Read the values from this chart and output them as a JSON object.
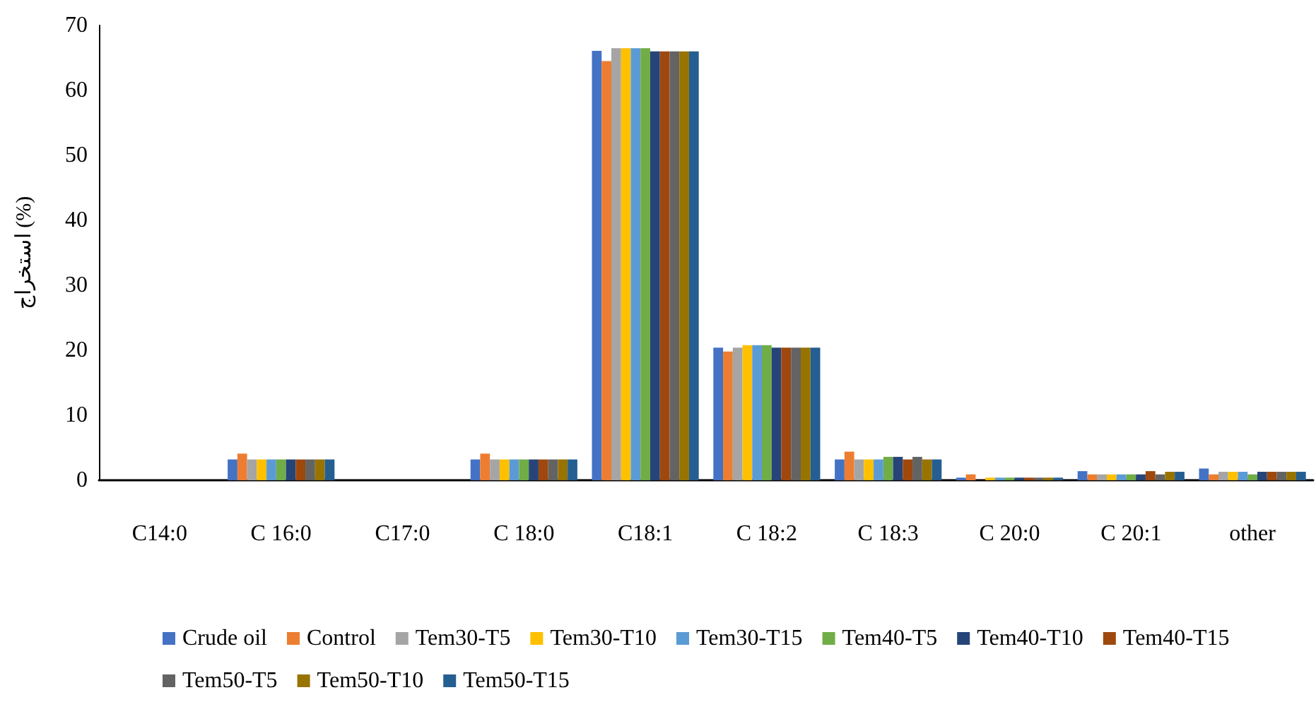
{
  "chart_data": {
    "type": "bar",
    "ylabel": "استخراج (%)",
    "categories": [
      "C14:0",
      "C 16:0",
      "C17:0",
      "C 18:0",
      "C18:1",
      "C 18:2",
      "C 18:3",
      "C 20:0",
      "C 20:1",
      "other"
    ],
    "series": [
      {
        "name": "Crude oil",
        "color": "#4472c4",
        "values": [
          0,
          3.2,
          0,
          3.2,
          66.1,
          20.4,
          3.2,
          0.4,
          1.4,
          1.8
        ]
      },
      {
        "name": "Control",
        "color": "#ed7d31",
        "values": [
          0,
          4.1,
          0,
          4.1,
          64.5,
          19.8,
          4.4,
          0.9,
          0.9,
          0.9
        ]
      },
      {
        "name": "Tem30-T5",
        "color": "#a5a5a5",
        "values": [
          0,
          3.2,
          0,
          3.2,
          66.5,
          20.4,
          3.2,
          null,
          0.9,
          1.3
        ]
      },
      {
        "name": "Tem30-T10",
        "color": "#ffc000",
        "values": [
          0,
          3.2,
          0,
          3.2,
          66.5,
          20.8,
          3.2,
          0.4,
          0.9,
          1.3
        ]
      },
      {
        "name": "Tem30-T15",
        "color": "#5b9bd5",
        "values": [
          0,
          3.2,
          0,
          3.2,
          66.5,
          20.8,
          3.2,
          0.4,
          0.9,
          1.3
        ]
      },
      {
        "name": "Tem40-T5",
        "color": "#70ad47",
        "values": [
          0,
          3.2,
          0,
          3.2,
          66.5,
          20.8,
          3.6,
          0.4,
          0.9,
          0.9
        ]
      },
      {
        "name": "Tem40-T10",
        "color": "#264478",
        "values": [
          0,
          3.2,
          0,
          3.2,
          66,
          20.4,
          3.6,
          0.4,
          0.9,
          1.3
        ]
      },
      {
        "name": "Tem40-T15",
        "color": "#9e480e",
        "values": [
          0,
          3.2,
          0,
          3.2,
          66,
          20.4,
          3.2,
          0.4,
          1.4,
          1.3
        ]
      },
      {
        "name": "Tem50-T5",
        "color": "#636363",
        "values": [
          0,
          3.2,
          0,
          3.2,
          66,
          20.4,
          3.6,
          0.4,
          0.9,
          1.3
        ]
      },
      {
        "name": "Tem50-T10",
        "color": "#997300",
        "values": [
          0,
          3.2,
          0,
          3.2,
          66,
          20.4,
          3.2,
          0.4,
          1.3,
          1.3
        ]
      },
      {
        "name": "Tem50-T15",
        "color": "#255e91",
        "values": [
          0,
          3.2,
          0,
          3.2,
          66,
          20.4,
          3.2,
          0.4,
          1.3,
          1.3
        ]
      }
    ],
    "ylim": [
      0,
      70
    ],
    "yticks": [
      0,
      10,
      20,
      30,
      40,
      50,
      60,
      70
    ],
    "grid": false,
    "legend": "bottom"
  }
}
